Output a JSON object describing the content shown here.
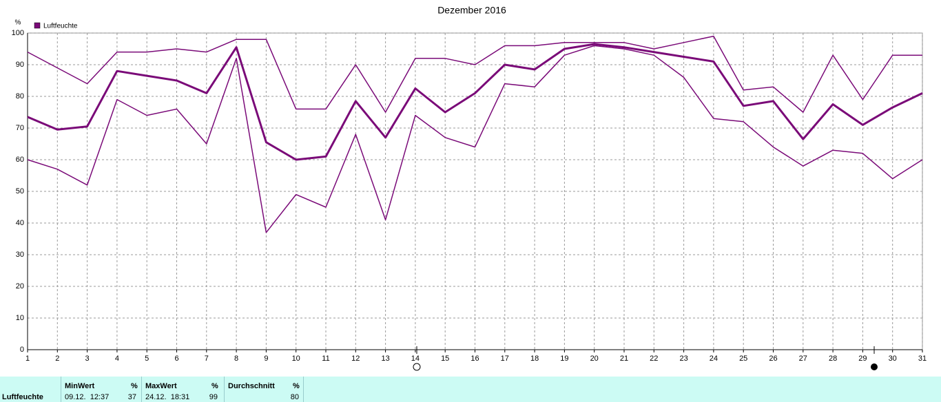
{
  "chart_data": {
    "type": "line",
    "title": "Dezember 2016",
    "y_unit": "%",
    "legend_label": "Luftfeuchte",
    "categories": [
      "1",
      "2",
      "3",
      "4",
      "5",
      "6",
      "7",
      "8",
      "9",
      "10",
      "11",
      "12",
      "13",
      "14",
      "15",
      "16",
      "17",
      "18",
      "19",
      "20",
      "21",
      "22",
      "23",
      "24",
      "25",
      "26",
      "27",
      "28",
      "29",
      "30",
      "31"
    ],
    "series": [
      {
        "color": "#7a0a78",
        "width": 1.5,
        "values": [
          94,
          89,
          84,
          94,
          94,
          95,
          94,
          98,
          98,
          76,
          76,
          90,
          75,
          92,
          92,
          90,
          96,
          96,
          97,
          97,
          97,
          95,
          97,
          99,
          82,
          83,
          75,
          93,
          79,
          93,
          93
        ]
      },
      {
        "color": "#7a0a78",
        "width": 3,
        "values": [
          73.5,
          69.5,
          70.5,
          88,
          86.5,
          85,
          81,
          95.5,
          65.5,
          60,
          61,
          78.5,
          67,
          82.5,
          75,
          81,
          90,
          88.5,
          95,
          96.5,
          95.5,
          94,
          92.5,
          91,
          77,
          78.5,
          66.5,
          77.5,
          71,
          76.5,
          81
        ]
      },
      {
        "color": "#7a0a78",
        "width": 1.5,
        "values": [
          60,
          57,
          52,
          79,
          74,
          76,
          65,
          92,
          37,
          49,
          45,
          68,
          41,
          74,
          67,
          64,
          84,
          83,
          93,
          96,
          95,
          93,
          86,
          73,
          72,
          64,
          58,
          63,
          62,
          54,
          60
        ]
      }
    ],
    "ylim": [
      0,
      100
    ],
    "yticks": [
      0,
      10,
      20,
      30,
      40,
      50,
      60,
      70,
      80,
      90,
      100
    ],
    "grid": true
  },
  "footer": {
    "row_label": "Luftfeuchte",
    "columns": [
      {
        "header": "MinWert",
        "unit": "%",
        "time": "09.12.  12:37",
        "value": 37
      },
      {
        "header": "MaxWert",
        "unit": "%",
        "time": "24.12.  18:31",
        "value": 99
      },
      {
        "header": "Durchschnitt",
        "unit": "%",
        "value": 80
      }
    ]
  }
}
